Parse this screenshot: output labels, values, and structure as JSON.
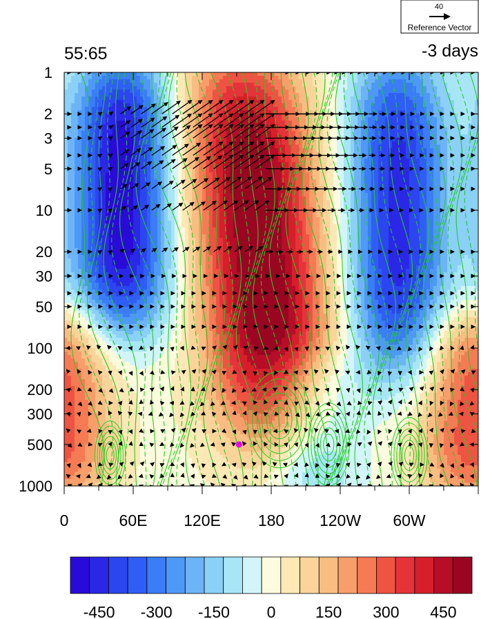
{
  "chart_data": {
    "type": "heatmap",
    "title_left": "55:65",
    "title_right": "-3 days",
    "x_ticks": [
      "0",
      "60E",
      "120E",
      "180",
      "120W",
      "60W"
    ],
    "x_tick_degrees": [
      0,
      60,
      120,
      180,
      240,
      300
    ],
    "x_range_degrees": [
      0,
      360
    ],
    "y_ticks": [
      "1",
      "2",
      "3",
      "5",
      "10",
      "20",
      "30",
      "50",
      "100",
      "200",
      "300",
      "500",
      "1000"
    ],
    "y_tick_values": [
      1,
      2,
      3,
      5,
      10,
      20,
      30,
      50,
      100,
      200,
      300,
      500,
      1000
    ],
    "y_range": [
      1,
      1000
    ],
    "y_scale": "log",
    "y_reversed": true,
    "colorbar": {
      "labels": [
        "-450",
        "-300",
        "-150",
        "0",
        "150",
        "300",
        "450"
      ],
      "label_values": [
        -450,
        -300,
        -150,
        0,
        150,
        300,
        450
      ],
      "levels": [
        -525,
        -475,
        -425,
        -375,
        -325,
        -275,
        -225,
        -175,
        -125,
        -75,
        -25,
        25,
        75,
        125,
        175,
        225,
        275,
        325,
        375,
        425,
        475,
        525
      ],
      "colors": [
        "#2a0ad9",
        "#2a28e6",
        "#2b46f0",
        "#2f5ef7",
        "#3a7df7",
        "#4e99f7",
        "#6db4f7",
        "#8ad0f7",
        "#a8e6f7",
        "#d2f5f9",
        "#fdfbde",
        "#fde8b6",
        "#fbd49a",
        "#f9bd82",
        "#f89e6a",
        "#f67b55",
        "#ef5342",
        "#e6333a",
        "#d61f2a",
        "#b70d28",
        "#9a0522"
      ]
    },
    "features": [
      {
        "type": "positive-anomaly",
        "longitude_top": 155,
        "longitude_bottom": 185,
        "p_top": 1,
        "p_bottom": 400,
        "peak": 550
      },
      {
        "type": "negative-anomaly",
        "longitude": 50,
        "p_top": 1,
        "p_bottom": 60,
        "peak": -520
      },
      {
        "type": "negative-anomaly",
        "longitude": 290,
        "p_top": 1,
        "p_bottom": 120,
        "peak": -450
      },
      {
        "type": "positive-anomaly",
        "longitude": 5,
        "p_top": 60,
        "p_bottom": 1000,
        "peak": 160
      },
      {
        "type": "negative-anomaly",
        "longitude": 215,
        "p_top": 150,
        "p_bottom": 1000,
        "peak": -200
      },
      {
        "type": "positive-anomaly",
        "longitude": 345,
        "p_top": 80,
        "p_bottom": 1000,
        "peak": 170
      }
    ],
    "marker": {
      "longitude": 152,
      "pressure": 500,
      "color": "#e800e8"
    },
    "reference_vector": {
      "value": "40",
      "label": "Reference Vector"
    },
    "contour_color": "#22cc22",
    "vector_color": "#000000",
    "grid": false
  }
}
